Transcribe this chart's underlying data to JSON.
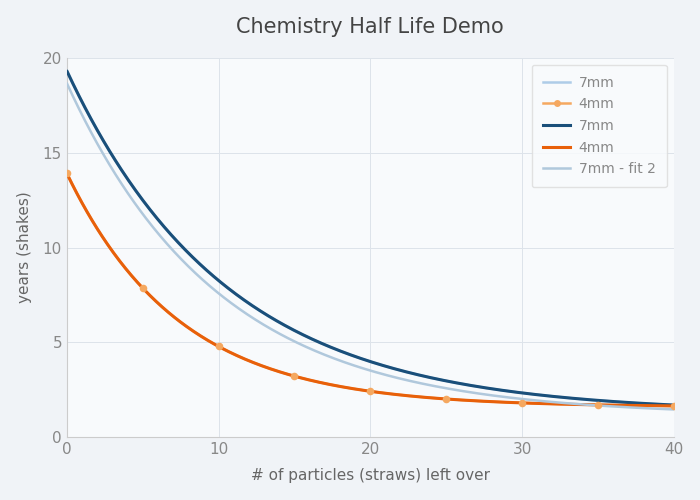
{
  "title": "Chemistry Half Life Demo",
  "xlabel": "# of particles (straws) left over",
  "ylabel": "years (shakes)",
  "xlim": [
    0,
    40
  ],
  "ylim": [
    0,
    20
  ],
  "xticks": [
    0,
    10,
    20,
    30,
    40
  ],
  "yticks": [
    0,
    5,
    10,
    15,
    20
  ],
  "bg_color": "#f0f3f7",
  "plot_bg_color": "#f8fafc",
  "series": [
    {
      "label": "7mm",
      "color": "#aecce8",
      "linewidth": 1.8,
      "A": 18.0,
      "b": 0.095,
      "c": 1.3,
      "marker": null
    },
    {
      "label": "4mm",
      "color": "#f5a860",
      "linewidth": 1.8,
      "A": 12.3,
      "b": 0.135,
      "c": 1.6,
      "marker": "o"
    },
    {
      "label": "7mm",
      "color": "#1a4f7a",
      "linewidth": 2.2,
      "A": 18.0,
      "b": 0.095,
      "c": 1.3,
      "marker": null
    },
    {
      "label": "4mm",
      "color": "#e8600a",
      "linewidth": 2.2,
      "A": 12.3,
      "b": 0.135,
      "c": 1.6,
      "marker": null
    },
    {
      "label": "7mm - fit 2",
      "color": "#b0c8dc",
      "linewidth": 1.8,
      "A": 17.5,
      "b": 0.1,
      "c": 1.15,
      "marker": null
    }
  ],
  "legend_fontsize": 10,
  "title_fontsize": 15,
  "tick_fontsize": 11
}
